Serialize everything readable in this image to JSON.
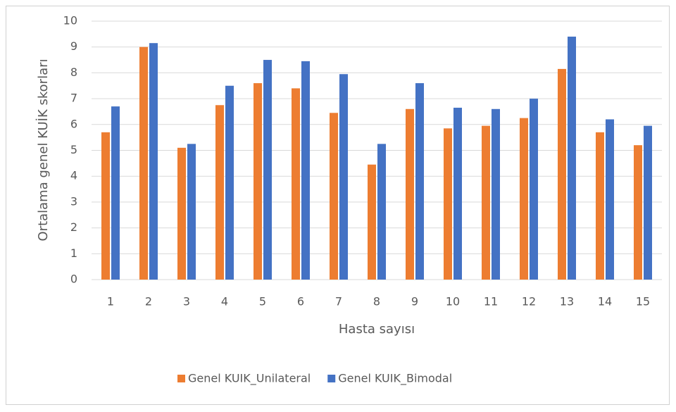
{
  "chart_data": {
    "type": "bar",
    "y_label": "Ortalama genel KUİK skorları",
    "x_label": "Hasta sayısı",
    "categories": [
      "1",
      "2",
      "3",
      "4",
      "5",
      "6",
      "7",
      "8",
      "9",
      "10",
      "11",
      "12",
      "13",
      "14",
      "15"
    ],
    "series": [
      {
        "name": "Genel KUIK_Unilateral",
        "color": "#ed7d31",
        "values": [
          5.7,
          9.0,
          5.1,
          6.75,
          7.6,
          7.4,
          6.45,
          4.45,
          6.6,
          5.85,
          5.95,
          6.25,
          8.15,
          5.7,
          5.2
        ]
      },
      {
        "name": "Genel KUIK_Bimodal",
        "color": "#4472c4",
        "values": [
          6.7,
          9.15,
          5.25,
          7.5,
          8.5,
          8.45,
          7.95,
          5.25,
          7.6,
          6.65,
          6.6,
          7.0,
          9.4,
          6.2,
          5.95
        ]
      }
    ],
    "ylim": [
      0,
      10
    ],
    "yticks": [
      0,
      1,
      2,
      3,
      4,
      5,
      6,
      7,
      8,
      9,
      10
    ],
    "grid": true,
    "legend": "bottom"
  }
}
